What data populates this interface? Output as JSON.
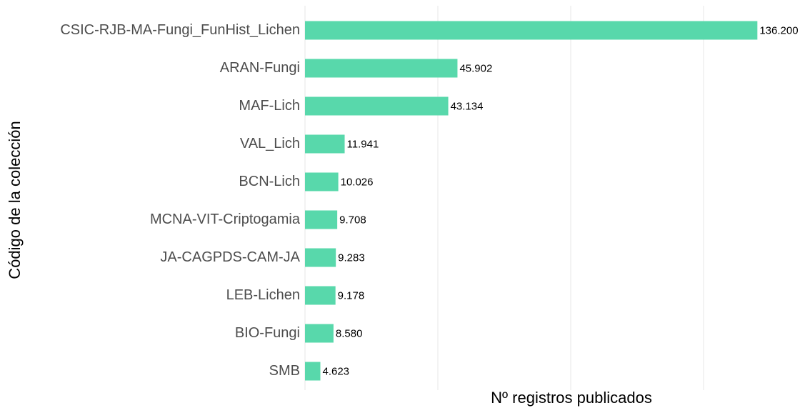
{
  "chart_data": {
    "type": "bar",
    "orientation": "horizontal",
    "x_label": "Nº registros publicados",
    "y_label": "Código de la colección",
    "categories": [
      "CSIC-RJB-MA-Fungi_FunHist_Lichen",
      "ARAN-Fungi",
      "MAF-Lich",
      "VAL_Lich",
      "BCN-Lich",
      "MCNA-VIT-Criptogamia",
      "JA-CAGPDS-CAM-JA",
      "LEB-Lichen",
      "BIO-Fungi",
      "SMB"
    ],
    "values": [
      136200,
      45902,
      43134,
      11941,
      10026,
      9708,
      9283,
      9178,
      8580,
      4623
    ],
    "value_labels": [
      "136.200",
      "45.902",
      "43.134",
      "11.941",
      "10.026",
      "9.708",
      "9.283",
      "9.178",
      "8.580",
      "4.623"
    ],
    "color": "#58d8ab",
    "xlim": [
      0,
      140000
    ],
    "xticks": [
      0,
      40000,
      80000,
      120000
    ],
    "grid": true
  }
}
